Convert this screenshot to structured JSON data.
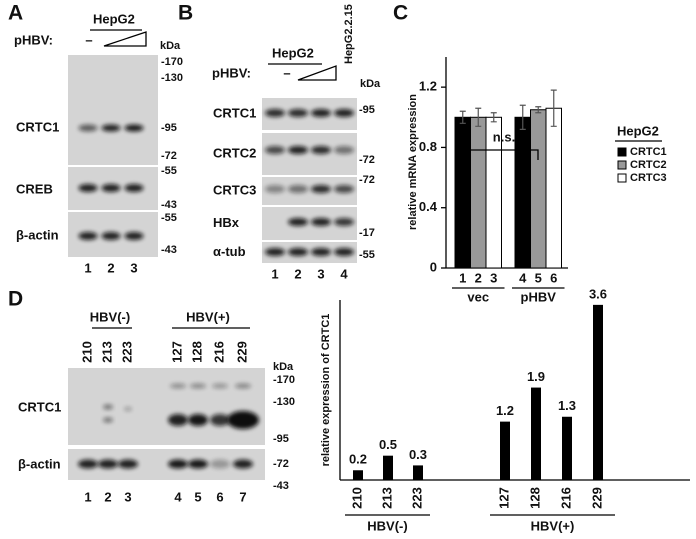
{
  "panel_a": {
    "label": "A",
    "cell_line": "HepG2",
    "treatment_label": "pHBV:",
    "control_lane": "–",
    "kda": "kDa",
    "rows": [
      "CRTC1",
      "CREB",
      "β-actin"
    ],
    "markers": [
      "-170",
      "-130",
      "-95",
      "-72",
      "-55",
      "-43",
      "-55",
      "-43"
    ],
    "lanes": [
      "1",
      "2",
      "3"
    ]
  },
  "panel_b": {
    "label": "B",
    "cell_line": "HepG2",
    "comparison_line": "HepG2.2.15",
    "treatment_label": "pHBV:",
    "control_lane": "–",
    "kda": "kDa",
    "rows": [
      "CRTC1",
      "CRTC2",
      "CRTC3",
      "HBx",
      "α-tub"
    ],
    "markers": [
      "-95",
      "-72",
      "-72",
      "-17",
      "-55"
    ],
    "lanes": [
      "1",
      "2",
      "3",
      "4"
    ]
  },
  "panel_c": {
    "label": "C"
  },
  "panel_d": {
    "label": "D",
    "groups": [
      "HBV(-)",
      "HBV(+)"
    ],
    "samples": [
      "210",
      "213",
      "223",
      "127",
      "128",
      "216",
      "229"
    ],
    "kda": "kDa",
    "rows": [
      "CRTC1",
      "β-actin"
    ],
    "markers": [
      "-170",
      "-130",
      "-95",
      "-72",
      "-43"
    ],
    "lanes": [
      "1",
      "2",
      "3",
      "4",
      "5",
      "6",
      "7"
    ]
  },
  "chart_data": [
    {
      "type": "grouped_bar",
      "ylabel": "relative mRNA expression",
      "categories": [
        "vec",
        "pHBV"
      ],
      "lane_labels": [
        "1",
        "2",
        "3",
        "4",
        "5",
        "6"
      ],
      "series": [
        {
          "name": "CRTC1",
          "color": "#000000",
          "values": [
            1.0,
            1.0
          ],
          "errors": [
            0.04,
            0.08
          ]
        },
        {
          "name": "CRTC2",
          "color": "#999999",
          "values": [
            1.0,
            1.05
          ],
          "errors": [
            0.06,
            0.02
          ]
        },
        {
          "name": "CRTC3",
          "color": "#ffffff",
          "values": [
            1.0,
            1.06
          ],
          "errors": [
            0.03,
            0.12
          ]
        }
      ],
      "legend_title": "HepG2",
      "annotation": "n.s.",
      "ylim": [
        0,
        1.4
      ],
      "yticks": [
        0,
        0.4,
        0.8,
        1.2
      ]
    },
    {
      "type": "bar",
      "ylabel": "relative expression of CRTC1",
      "categories": [
        "210",
        "213",
        "223",
        "127",
        "128",
        "216",
        "229"
      ],
      "groups": [
        "HBV(-)",
        "HBV(+)"
      ],
      "values": [
        0.2,
        0.5,
        0.3,
        1.2,
        1.9,
        1.3,
        3.6
      ],
      "color": "#000000",
      "ylim": [
        0,
        3.7
      ]
    }
  ]
}
